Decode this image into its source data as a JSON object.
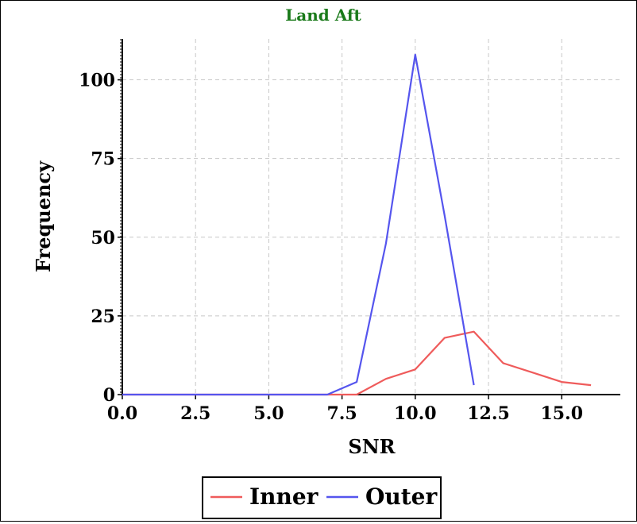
{
  "chart_data": {
    "type": "line",
    "title": "Land Aft",
    "xlabel": "SNR",
    "ylabel": "Frequency",
    "xlim": [
      0,
      17
    ],
    "ylim": [
      0,
      113
    ],
    "x_ticks": [
      "0.0",
      "2.5",
      "5.0",
      "7.5",
      "10.0",
      "12.5",
      "15.0"
    ],
    "y_ticks": [
      "0",
      "25",
      "50",
      "75",
      "100"
    ],
    "grid": true,
    "legend_position": "bottom",
    "series": [
      {
        "name": "Inner",
        "color": "#ef5b5b",
        "x": [
          0,
          1,
          2,
          3,
          4,
          5,
          6,
          7,
          8,
          9,
          10,
          11,
          12,
          13,
          14,
          15,
          16
        ],
        "y": [
          0,
          0,
          0,
          0,
          0,
          0,
          0,
          0,
          0,
          5,
          8,
          18,
          20,
          10,
          7,
          4,
          3
        ]
      },
      {
        "name": "Outer",
        "color": "#5555ee",
        "x": [
          0,
          1,
          2,
          3,
          4,
          5,
          6,
          7,
          8,
          9,
          10,
          11,
          12
        ],
        "y": [
          0,
          0,
          0,
          0,
          0,
          0,
          0,
          0,
          4,
          48,
          108,
          57,
          3
        ]
      }
    ]
  }
}
